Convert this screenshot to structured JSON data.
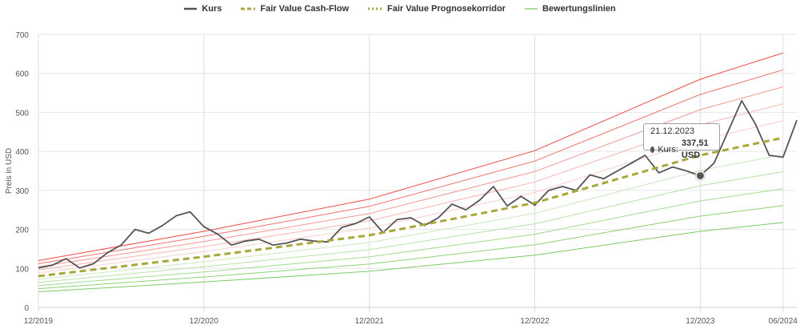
{
  "chart_data": {
    "type": "line",
    "ylabel": "Preis in USD",
    "ylim": [
      0,
      700
    ],
    "yticks": [
      0,
      100,
      200,
      300,
      400,
      500,
      600,
      700
    ],
    "xlim": [
      "2019-12",
      "2024-07"
    ],
    "xticks": [
      "12/2019",
      "12/2020",
      "12/2021",
      "12/2022",
      "12/2023",
      "06/2024"
    ],
    "grid": true,
    "legend_position": "top-center",
    "series": [
      {
        "name": "Kurs",
        "color": "#555555",
        "style": "solid",
        "x": [
          "2019-12",
          "2020-01",
          "2020-02",
          "2020-03",
          "2020-04",
          "2020-05",
          "2020-06",
          "2020-07",
          "2020-08",
          "2020-09",
          "2020-10",
          "2020-11",
          "2020-12",
          "2021-01",
          "2021-02",
          "2021-03",
          "2021-04",
          "2021-05",
          "2021-06",
          "2021-07",
          "2021-08",
          "2021-09",
          "2021-10",
          "2021-11",
          "2021-12",
          "2022-01",
          "2022-02",
          "2022-03",
          "2022-04",
          "2022-05",
          "2022-06",
          "2022-07",
          "2022-08",
          "2022-09",
          "2022-10",
          "2022-11",
          "2022-12",
          "2023-01",
          "2023-02",
          "2023-03",
          "2023-04",
          "2023-05",
          "2023-06",
          "2023-07",
          "2023-08",
          "2023-09",
          "2023-10",
          "2023-11",
          "2023-12",
          "2024-01",
          "2024-02",
          "2024-03",
          "2024-04",
          "2024-05",
          "2024-06",
          "2024-07"
        ],
        "values": [
          101,
          108,
          125,
          101,
          112,
          140,
          160,
          200,
          190,
          210,
          235,
          245,
          207,
          188,
          160,
          170,
          175,
          160,
          165,
          175,
          170,
          168,
          205,
          215,
          232,
          192,
          225,
          230,
          210,
          230,
          265,
          250,
          275,
          310,
          260,
          285,
          262,
          300,
          310,
          300,
          340,
          330,
          350,
          370,
          390,
          345,
          360,
          350,
          337.51,
          370,
          450,
          530,
          470,
          390,
          385,
          480
        ]
      },
      {
        "name": "Fair Value Cash-Flow",
        "color": "#a8a838",
        "style": "dashed",
        "x": [
          "2019-12",
          "2020-12",
          "2021-12",
          "2022-12",
          "2023-12",
          "2024-06"
        ],
        "values": [
          80,
          130,
          185,
          268,
          390,
          435
        ]
      },
      {
        "name": "Fair Value Prognosekorridor",
        "color": "#a8a838",
        "style": "dotted",
        "x": [],
        "values": []
      },
      {
        "name": "Bewertungslinien",
        "color": "#8fd17a",
        "style": "thin",
        "x": [],
        "values": []
      }
    ],
    "valuation_lines": {
      "multipliers": [
        1.5,
        1.4,
        1.3,
        1.2,
        1.1,
        0.9,
        0.8,
        0.7,
        0.6,
        0.5
      ],
      "colors": [
        "#f04a42",
        "#f47068",
        "#f79690",
        "#f9b4ae",
        "#fbd0cc",
        "#c9ebbd",
        "#b6e4a6",
        "#a1dc8e",
        "#8cd375",
        "#7ccb63"
      ]
    },
    "tooltip": {
      "date": "21.12.2023",
      "label": "Kurs:",
      "value": "337,51 USD",
      "point": {
        "x": "2023-12",
        "y": 337.51
      }
    }
  }
}
